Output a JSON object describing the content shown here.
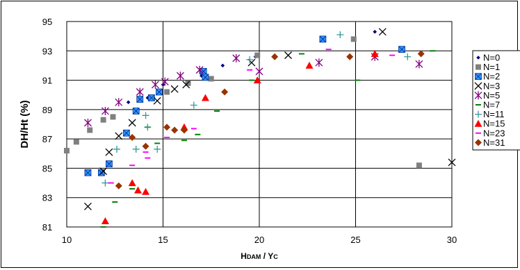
{
  "chart_data": {
    "type": "scatter",
    "title": "",
    "xlabel": "Hdam / Yc",
    "ylabel": "DH/Ht (%)",
    "xlim": [
      10,
      30
    ],
    "ylim": [
      81,
      95
    ],
    "xticks": [
      "10",
      "15",
      "20",
      "25",
      "30"
    ],
    "yticks": [
      "81",
      "83",
      "85",
      "87",
      "89",
      "91",
      "93",
      "95"
    ],
    "grid": "major gridlines",
    "legend_position": "right",
    "series": [
      {
        "name": "N=0",
        "marker": "diamond-small",
        "color": "#000080",
        "points": [
          [
            13.2,
            89.5
          ],
          [
            14.2,
            89.8
          ],
          [
            15.0,
            90.7
          ],
          [
            17.0,
            91.3
          ],
          [
            18.1,
            92.0
          ],
          [
            19.8,
            92.6
          ],
          [
            26.0,
            94.3
          ]
        ]
      },
      {
        "name": "N=1",
        "marker": "square",
        "color": "#808080",
        "points": [
          [
            10.0,
            86.2
          ],
          [
            10.5,
            86.8
          ],
          [
            11.2,
            87.6
          ],
          [
            11.9,
            88.3
          ],
          [
            12.4,
            88.5
          ],
          [
            15.2,
            90.2
          ],
          [
            16.3,
            90.8
          ],
          [
            17.5,
            91.1
          ],
          [
            19.9,
            92.7
          ],
          [
            24.9,
            93.8
          ],
          [
            28.3,
            85.2
          ]
        ]
      },
      {
        "name": "N=2",
        "marker": "square-x",
        "color": "#3399ff",
        "points": [
          [
            11.1,
            84.7
          ],
          [
            11.8,
            84.7
          ],
          [
            12.2,
            85.3
          ],
          [
            13.1,
            87.4
          ],
          [
            13.6,
            88.9
          ],
          [
            13.8,
            89.7
          ],
          [
            14.4,
            89.8
          ],
          [
            14.8,
            90.2
          ],
          [
            17.1,
            91.6
          ],
          [
            17.2,
            91.2
          ],
          [
            23.3,
            93.8
          ],
          [
            27.4,
            93.1
          ]
        ]
      },
      {
        "name": "N=3",
        "marker": "x",
        "color": "#000000",
        "points": [
          [
            11.1,
            82.4
          ],
          [
            11.9,
            84.8
          ],
          [
            12.2,
            86.1
          ],
          [
            12.7,
            87.2
          ],
          [
            13.4,
            88.1
          ],
          [
            14.7,
            89.6
          ],
          [
            15.6,
            90.4
          ],
          [
            16.2,
            90.7
          ],
          [
            19.6,
            92.2
          ],
          [
            21.5,
            92.7
          ],
          [
            26.4,
            94.3
          ],
          [
            30.0,
            85.4
          ]
        ]
      },
      {
        "name": "N=5",
        "marker": "asterisk",
        "color": "#800080",
        "points": [
          [
            11.1,
            88.1
          ],
          [
            12.0,
            88.9
          ],
          [
            12.7,
            89.5
          ],
          [
            13.8,
            90.2
          ],
          [
            14.6,
            90.7
          ],
          [
            15.1,
            90.9
          ],
          [
            15.9,
            91.3
          ],
          [
            16.9,
            91.7
          ],
          [
            18.8,
            92.5
          ],
          [
            20.0,
            91.6
          ],
          [
            23.1,
            92.2
          ],
          [
            26.0,
            92.6
          ],
          [
            28.3,
            92.1
          ]
        ]
      },
      {
        "name": "N=7",
        "marker": "dash",
        "color": "#008000",
        "points": [
          [
            11.9,
            81.0
          ],
          [
            12.5,
            82.7
          ],
          [
            13.4,
            83.6
          ],
          [
            14.2,
            87.8
          ],
          [
            14.7,
            86.7
          ],
          [
            16.1,
            86.9
          ],
          [
            16.8,
            87.3
          ],
          [
            17.8,
            88.9
          ],
          [
            19.6,
            91.0
          ],
          [
            22.2,
            92.8
          ],
          [
            25.1,
            91.0
          ],
          [
            29.0,
            93.0
          ]
        ]
      },
      {
        "name": "N=11",
        "marker": "plus",
        "color": "#339999",
        "points": [
          [
            12.0,
            84.0
          ],
          [
            12.6,
            86.3
          ],
          [
            13.6,
            86.3
          ],
          [
            14.1,
            88.6
          ],
          [
            14.2,
            87.8
          ],
          [
            14.7,
            86.3
          ],
          [
            16.6,
            89.3
          ],
          [
            19.5,
            92.4
          ],
          [
            24.2,
            94.1
          ],
          [
            27.7,
            92.6
          ]
        ]
      },
      {
        "name": "N=15",
        "marker": "triangle",
        "color": "#ff0000",
        "points": [
          [
            12.0,
            81.4
          ],
          [
            13.4,
            84.0
          ],
          [
            13.7,
            83.5
          ],
          [
            14.1,
            83.4
          ],
          [
            16.1,
            87.8
          ],
          [
            17.2,
            89.8
          ],
          [
            19.9,
            91.0
          ],
          [
            22.6,
            92.0
          ],
          [
            26.0,
            92.8
          ]
        ]
      },
      {
        "name": "N=23",
        "marker": "dash",
        "color": "#ff00ff",
        "points": [
          [
            12.3,
            84.0
          ],
          [
            13.4,
            85.2
          ],
          [
            14.1,
            86.1
          ],
          [
            14.2,
            85.7
          ],
          [
            15.2,
            87.1
          ],
          [
            16.6,
            87.7
          ],
          [
            19.5,
            91.7
          ],
          [
            23.6,
            93.1
          ],
          [
            26.9,
            92.7
          ]
        ]
      },
      {
        "name": "N=31",
        "marker": "diamond",
        "color": "#993300",
        "points": [
          [
            12.7,
            83.8
          ],
          [
            13.4,
            87.1
          ],
          [
            14.1,
            86.5
          ],
          [
            15.2,
            87.8
          ],
          [
            15.6,
            87.6
          ],
          [
            16.1,
            87.6
          ],
          [
            18.2,
            90.2
          ],
          [
            20.8,
            92.6
          ],
          [
            24.7,
            92.6
          ],
          [
            28.4,
            92.8
          ]
        ]
      }
    ]
  }
}
